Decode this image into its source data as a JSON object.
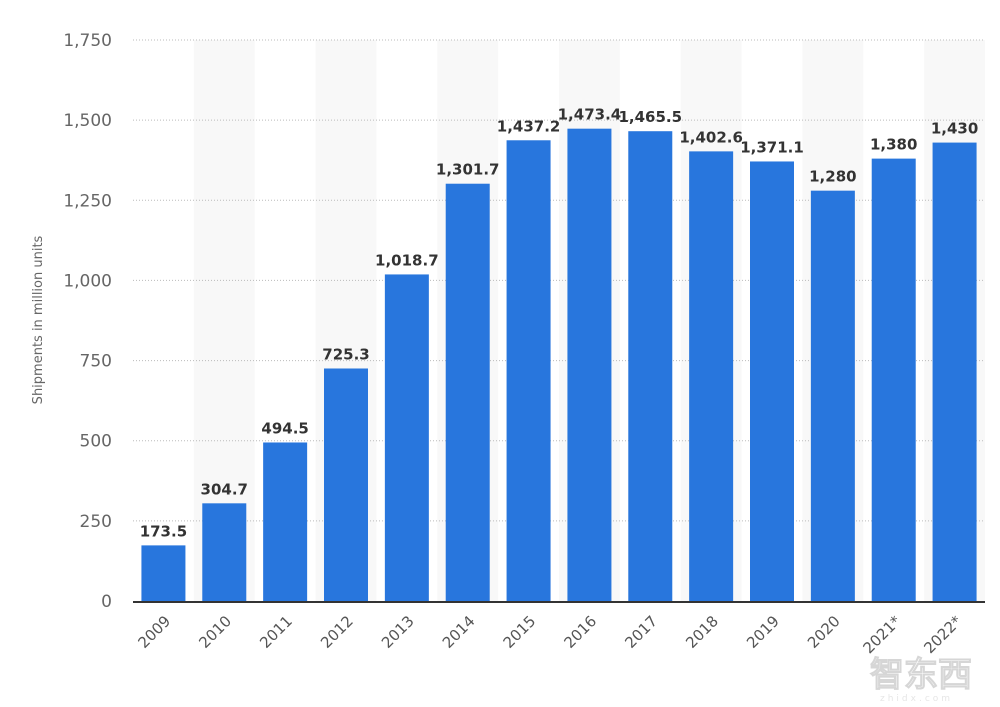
{
  "chart_data": {
    "type": "bar",
    "title": "",
    "xlabel": "",
    "ylabel": "Shipments in million units",
    "ylim": [
      0,
      1750
    ],
    "yticks": [
      0,
      250,
      500,
      750,
      1000,
      1250,
      1500,
      1750
    ],
    "ytick_labels": [
      "0",
      "250",
      "500",
      "750",
      "1,000",
      "1,250",
      "1,500",
      "1,750"
    ],
    "grid": true,
    "categories": [
      "2009",
      "2010",
      "2011",
      "2012",
      "2013",
      "2014",
      "2015",
      "2016",
      "2017",
      "2018",
      "2019",
      "2020",
      "2021*",
      "2022*"
    ],
    "values": [
      173.5,
      304.7,
      494.5,
      725.3,
      1018.7,
      1301.7,
      1437.2,
      1473.4,
      1465.5,
      1402.6,
      1371.1,
      1280,
      1380,
      1430
    ],
    "data_labels": [
      "173.5",
      "304.7",
      "494.5",
      "725.3",
      "1,018.7",
      "1,301.7",
      "1,437.2",
      "1,473.4",
      "1,465.5",
      "1,402.6",
      "1,371.1",
      "1,280",
      "1,380",
      "1,430"
    ],
    "bar_color": "#2876dd"
  },
  "watermark": {
    "text": "智东西",
    "sub": "zhidx.com"
  }
}
